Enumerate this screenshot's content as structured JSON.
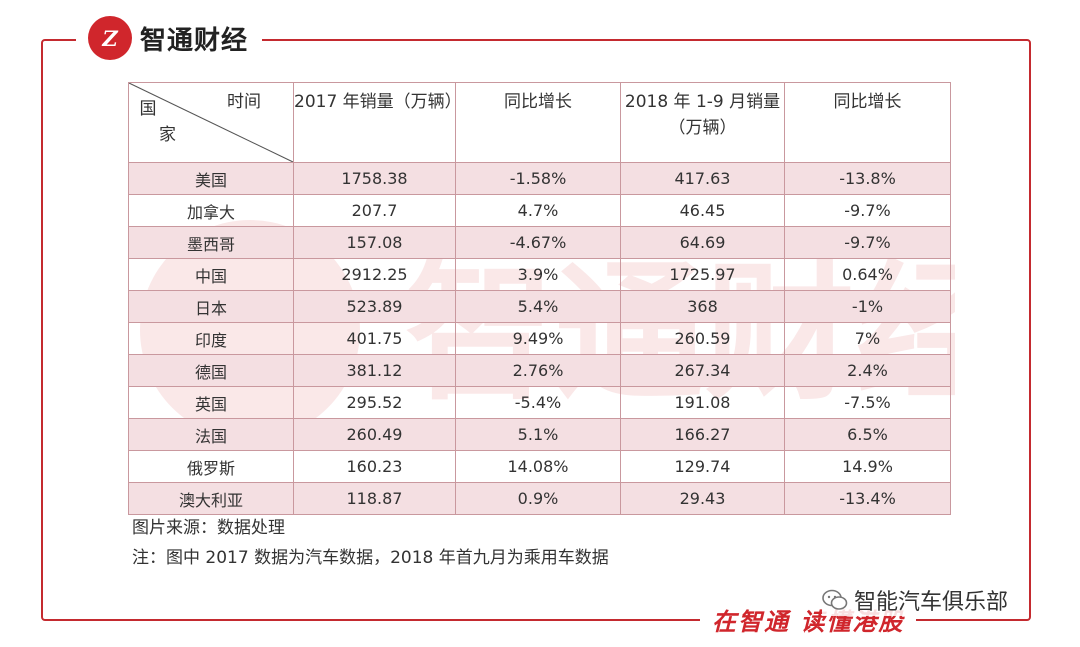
{
  "brand": {
    "logo_text": "Z",
    "name": "智通财经"
  },
  "watermark": {
    "text": "智通财经"
  },
  "table": {
    "header": {
      "corner_top": "时间",
      "corner_left_1": "国",
      "corner_left_2": "家",
      "col1": "2017 年销量（万辆）",
      "col2": "同比增长",
      "col3": "2018 年 1-9 月销量（万辆）",
      "col4": "同比增长"
    },
    "rows": [
      [
        "美国",
        "1758.38",
        "-1.58%",
        "417.63",
        "-13.8%"
      ],
      [
        "加拿大",
        "207.7",
        "4.7%",
        "46.45",
        "-9.7%"
      ],
      [
        "墨西哥",
        "157.08",
        "-4.67%",
        "64.69",
        "-9.7%"
      ],
      [
        "中国",
        "2912.25",
        "3.9%",
        "1725.97",
        "0.64%"
      ],
      [
        "日本",
        "523.89",
        "5.4%",
        "368",
        "-1%"
      ],
      [
        "印度",
        "401.75",
        "9.49%",
        "260.59",
        "7%"
      ],
      [
        "德国",
        "381.12",
        "2.76%",
        "267.34",
        "2.4%"
      ],
      [
        "英国",
        "295.52",
        "-5.4%",
        "191.08",
        "-7.5%"
      ],
      [
        "法国",
        "260.49",
        "5.1%",
        "166.27",
        "6.5%"
      ],
      [
        "俄罗斯",
        "160.23",
        "14.08%",
        "129.74",
        "14.9%"
      ],
      [
        "澳大利亚",
        "118.87",
        "0.9%",
        "29.43",
        "-13.4%"
      ]
    ]
  },
  "notes": {
    "source": "图片来源：数据处理",
    "remark": "注：图中 2017 数据为汽车数据，2018 年首九月为乘用车数据"
  },
  "slogan": "在智通 读懂港股",
  "wechat_account": "智能汽车俱乐部",
  "colors": {
    "brand_red": "#d0262c",
    "row_shade": "#f4dfe2",
    "border": "#c9989e"
  }
}
